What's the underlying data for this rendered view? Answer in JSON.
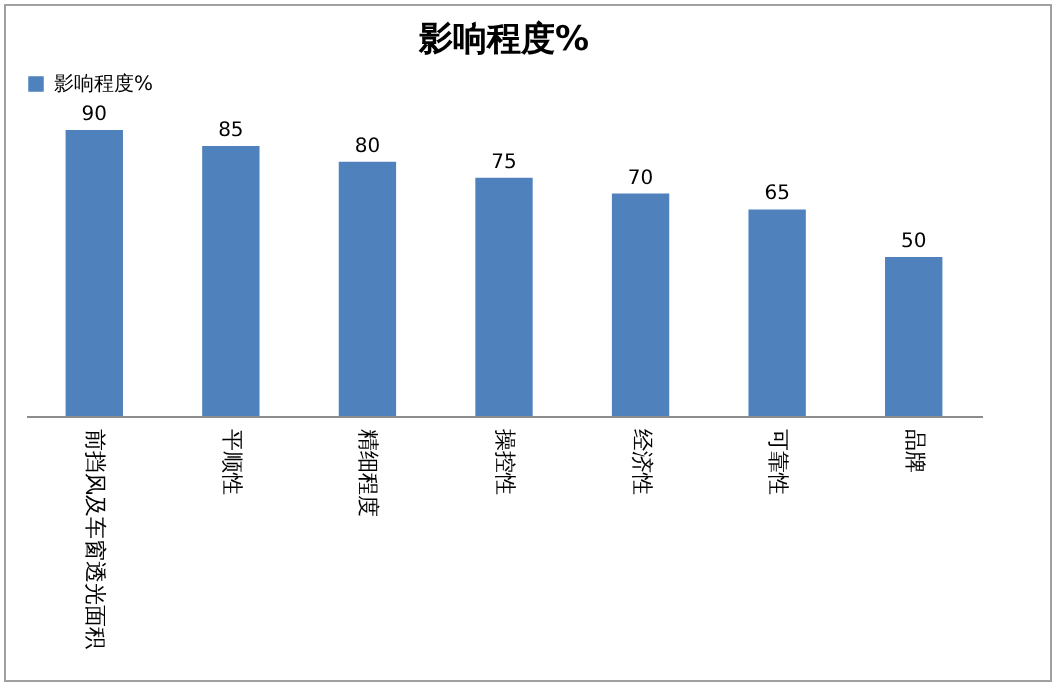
{
  "chart_data": {
    "type": "bar",
    "title": "影响程度%",
    "categories": [
      "前挡风及车窗透光面积",
      "平顺性",
      "精细程度",
      "操控性",
      "经济性",
      "可靠性",
      "品牌"
    ],
    "series": [
      {
        "name": "影响程度%",
        "color": "#4f81bd",
        "values": [
          90,
          85,
          80,
          75,
          70,
          65,
          50
        ]
      }
    ],
    "data_labels": true,
    "legend": "top",
    "grid": false
  }
}
